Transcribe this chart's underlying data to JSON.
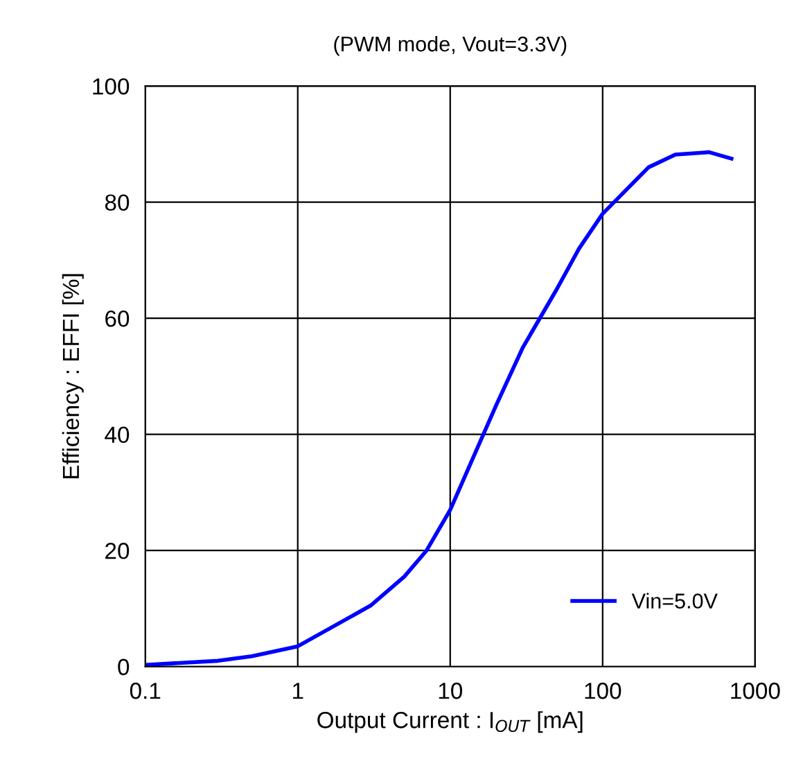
{
  "chart_data": {
    "type": "line",
    "title": "(PWM mode, Vout=3.3V)",
    "xlabel": "Output Current : I$_{OUT}$ [mA]",
    "ylabel": "Efficiency : EFFI [%]",
    "x": [
      0.1,
      0.3,
      0.5,
      1,
      3,
      5,
      7,
      10,
      20,
      30,
      50,
      70,
      100,
      200,
      300,
      500,
      700
    ],
    "series": [
      {
        "name": "Vin=5.0V",
        "color": "#0000ff",
        "values": [
          0.3,
          1,
          1.8,
          3.5,
          10.5,
          15.5,
          20,
          27,
          45,
          55,
          65,
          72,
          78,
          86,
          88.2,
          88.6,
          87.5
        ]
      }
    ],
    "log": "x",
    "xlim": [
      0.1,
      1000
    ],
    "xticks": [
      0.1,
      1,
      10,
      100,
      1000
    ],
    "ylim": [
      0,
      100
    ],
    "yticks": [
      0,
      20,
      40,
      60,
      80,
      100
    ],
    "grid": true,
    "legend": "bottom right",
    "marker": "none",
    "line_style": "solid"
  }
}
